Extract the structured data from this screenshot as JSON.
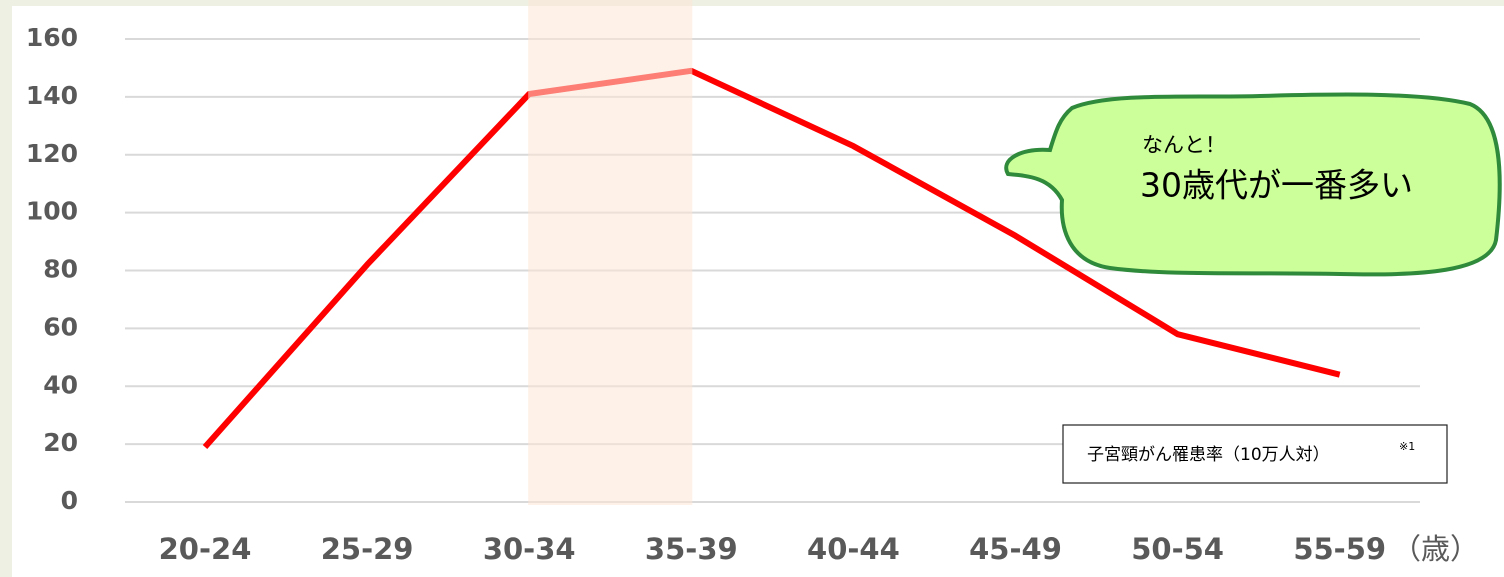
{
  "chart_data": {
    "type": "line",
    "categories": [
      "20-24",
      "25-29",
      "30-34",
      "35-39",
      "40-44",
      "45-49",
      "50-54",
      "55-59"
    ],
    "x_unit": "（歳）",
    "series": [
      {
        "name": "子宮頸がん罹患率（10万人対）",
        "color": "#ff0000",
        "values": [
          19,
          82,
          141,
          149,
          123,
          92,
          58,
          44
        ]
      }
    ],
    "legend_note": "※1",
    "ylim": [
      0,
      160
    ],
    "yticks": [
      0,
      20,
      40,
      60,
      80,
      100,
      120,
      140,
      160
    ],
    "grid": true,
    "annotation": {
      "small": "なんと！",
      "large": "30歳代が一番多い"
    }
  }
}
